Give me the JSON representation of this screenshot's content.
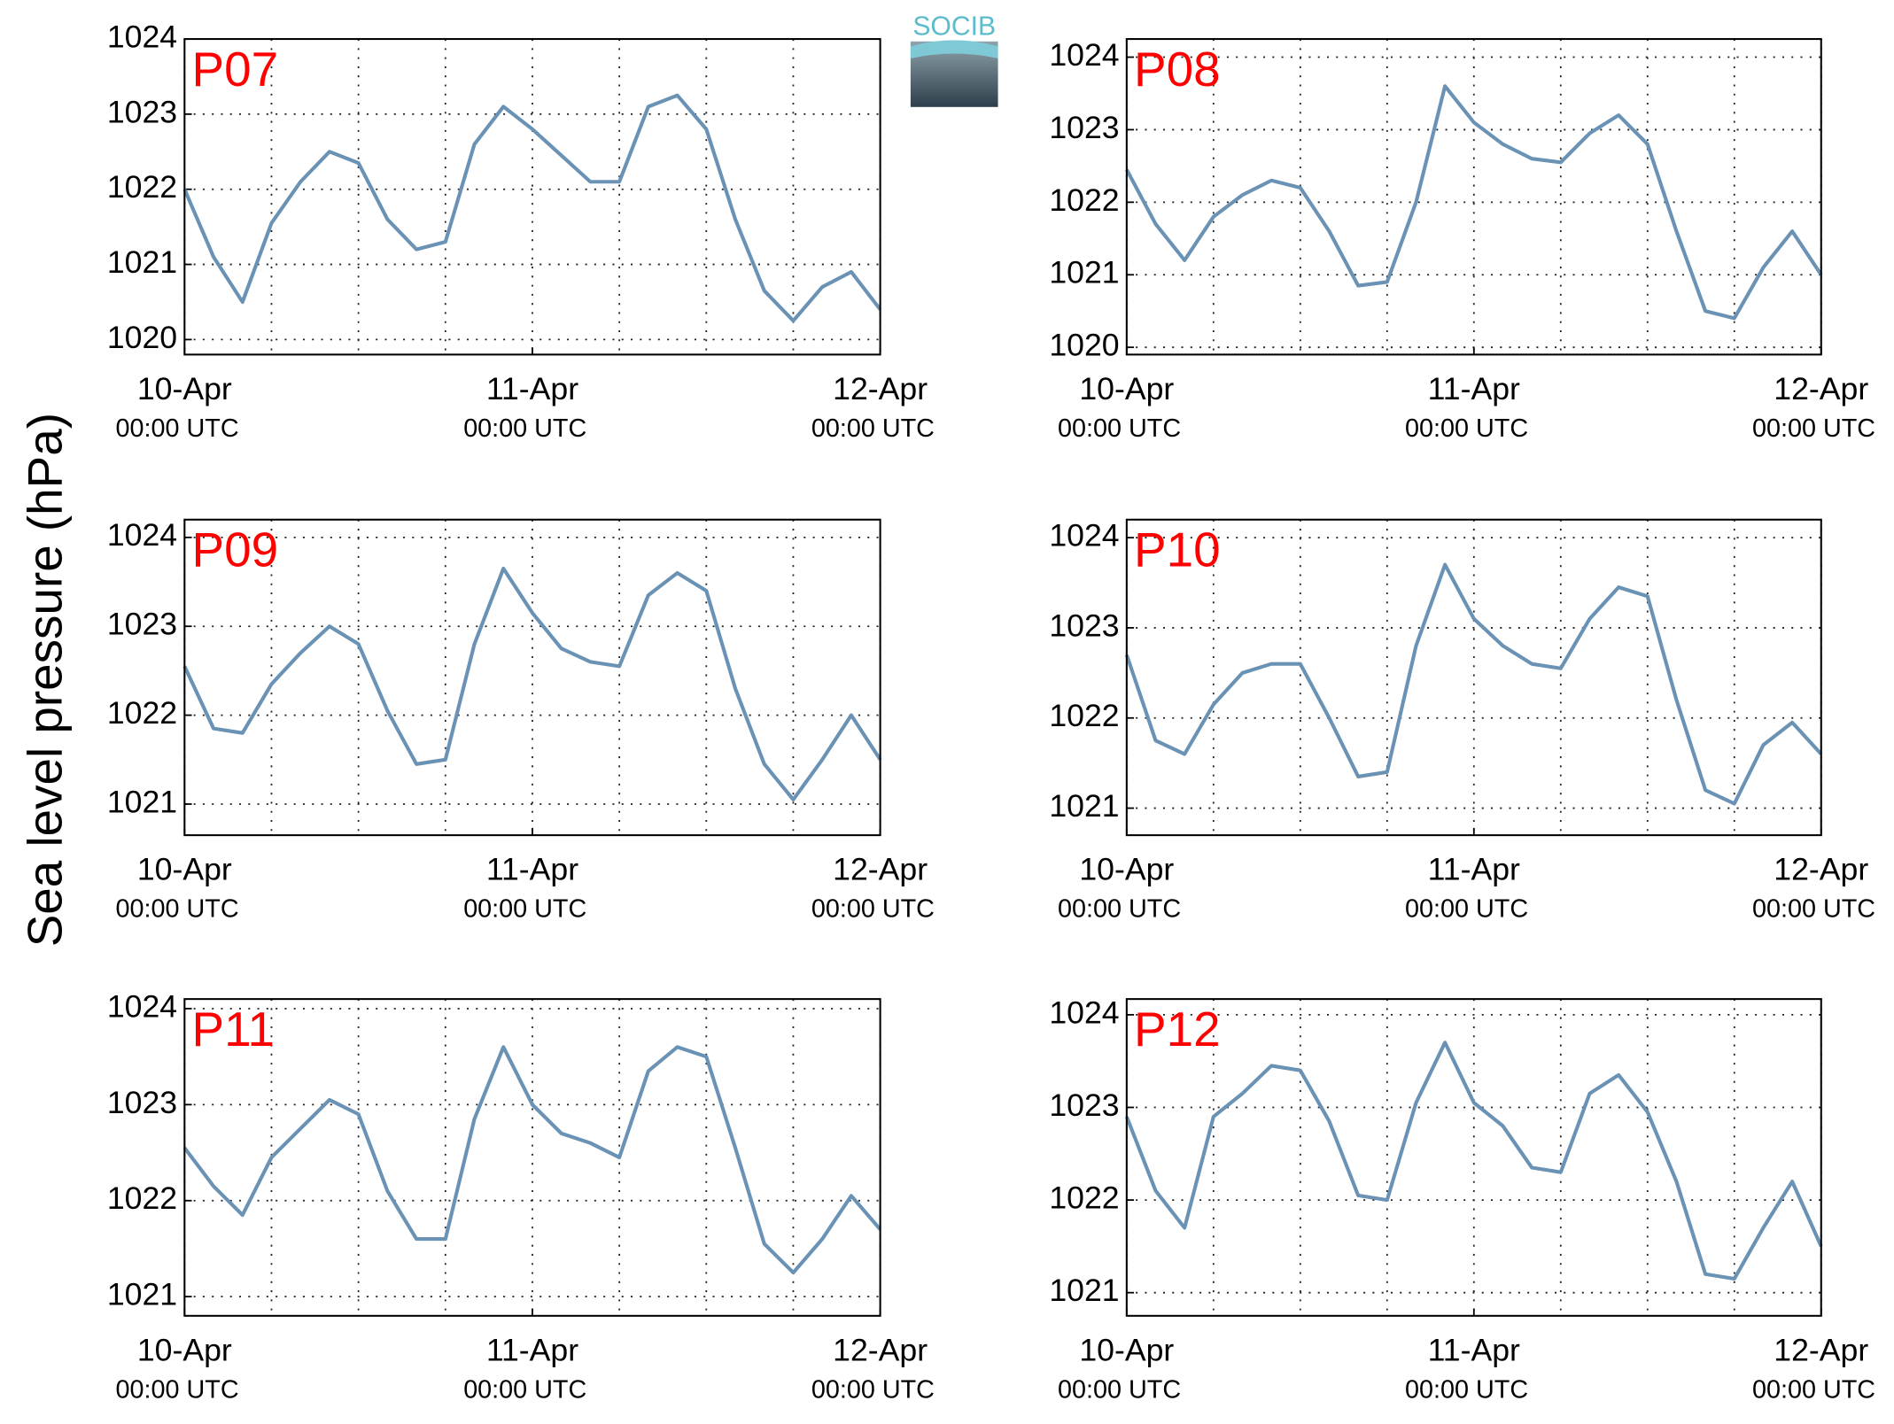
{
  "y_label": "Sea level pressure (hPa)",
  "logo": "SOCIB",
  "chart_data": [
    {
      "type": "line",
      "title": "P07",
      "x": [
        0,
        2,
        4,
        6,
        8,
        10,
        12,
        14,
        16,
        18,
        20,
        22,
        24,
        26,
        28,
        30,
        32,
        34,
        36,
        38,
        40,
        42,
        44,
        46,
        48
      ],
      "series": [
        {
          "color": "#6a92b4",
          "values": [
            1022.0,
            1021.1,
            1020.5,
            1021.55,
            1022.1,
            1022.5,
            1022.35,
            1021.6,
            1021.2,
            1021.3,
            1022.6,
            1023.1,
            1022.8,
            1022.45,
            1022.1,
            1022.1,
            1023.1,
            1023.25,
            1022.8,
            1021.6,
            1020.65,
            1020.25,
            1020.7,
            1020.9,
            1020.4
          ]
        }
      ],
      "xlim": [
        0,
        48
      ],
      "xticks": [
        {
          "value": 0,
          "label": "10-Apr",
          "sublabel": "00:00 UTC"
        },
        {
          "value": 24,
          "label": "11-Apr",
          "sublabel": "00:00 UTC"
        },
        {
          "value": 48,
          "label": "12-Apr",
          "sublabel": "00:00 UTC"
        }
      ],
      "xminor": [
        6,
        12,
        18,
        30,
        36,
        42
      ],
      "ylim": [
        1019.8,
        1024
      ],
      "yticks": [
        1020,
        1021,
        1022,
        1023,
        1024
      ],
      "grid": true
    },
    {
      "type": "line",
      "title": "P08",
      "x": [
        0,
        2,
        4,
        6,
        8,
        10,
        12,
        14,
        16,
        18,
        20,
        22,
        24,
        26,
        28,
        30,
        32,
        34,
        36,
        38,
        40,
        42,
        44,
        46,
        48
      ],
      "series": [
        {
          "color": "#6a92b4",
          "values": [
            1022.45,
            1021.7,
            1021.2,
            1021.8,
            1022.1,
            1022.3,
            1022.2,
            1021.6,
            1020.85,
            1020.9,
            1022.0,
            1023.6,
            1023.1,
            1022.8,
            1022.6,
            1022.55,
            1022.95,
            1023.2,
            1022.8,
            1021.6,
            1020.5,
            1020.4,
            1021.1,
            1021.6,
            1021.0
          ]
        }
      ],
      "xlim": [
        0,
        48
      ],
      "xticks": [
        {
          "value": 0,
          "label": "10-Apr",
          "sublabel": "00:00 UTC"
        },
        {
          "value": 24,
          "label": "11-Apr",
          "sublabel": "00:00 UTC"
        },
        {
          "value": 48,
          "label": "12-Apr",
          "sublabel": "00:00 UTC"
        }
      ],
      "xminor": [
        6,
        12,
        18,
        30,
        36,
        42
      ],
      "ylim": [
        1019.9,
        1024.25
      ],
      "yticks": [
        1020,
        1021,
        1022,
        1023,
        1024
      ],
      "grid": true
    },
    {
      "type": "line",
      "title": "P09",
      "x": [
        0,
        2,
        4,
        6,
        8,
        10,
        12,
        14,
        16,
        18,
        20,
        22,
        24,
        26,
        28,
        30,
        32,
        34,
        36,
        38,
        40,
        42,
        44,
        46,
        48
      ],
      "series": [
        {
          "color": "#6a92b4",
          "values": [
            1022.55,
            1021.85,
            1021.8,
            1022.35,
            1022.7,
            1023.0,
            1022.8,
            1022.05,
            1021.45,
            1021.5,
            1022.8,
            1023.65,
            1023.15,
            1022.75,
            1022.6,
            1022.55,
            1023.35,
            1023.6,
            1023.4,
            1022.3,
            1021.45,
            1021.05,
            1021.5,
            1022.0,
            1021.5
          ]
        }
      ],
      "xlim": [
        0,
        48
      ],
      "xticks": [
        {
          "value": 0,
          "label": "10-Apr",
          "sublabel": "00:00 UTC"
        },
        {
          "value": 24,
          "label": "11-Apr",
          "sublabel": "00:00 UTC"
        },
        {
          "value": 48,
          "label": "12-Apr",
          "sublabel": "00:00 UTC"
        }
      ],
      "xminor": [
        6,
        12,
        18,
        30,
        36,
        42
      ],
      "ylim": [
        1020.65,
        1024.2
      ],
      "yticks": [
        1021,
        1022,
        1023,
        1024
      ],
      "grid": true
    },
    {
      "type": "line",
      "title": "P10",
      "x": [
        0,
        2,
        4,
        6,
        8,
        10,
        12,
        14,
        16,
        18,
        20,
        22,
        24,
        26,
        28,
        30,
        32,
        34,
        36,
        38,
        40,
        42,
        44,
        46,
        48
      ],
      "series": [
        {
          "color": "#6a92b4",
          "values": [
            1022.7,
            1021.75,
            1021.6,
            1022.15,
            1022.5,
            1022.6,
            1022.6,
            1022.0,
            1021.35,
            1021.4,
            1022.8,
            1023.7,
            1023.1,
            1022.8,
            1022.6,
            1022.55,
            1023.1,
            1023.45,
            1023.35,
            1022.2,
            1021.2,
            1021.05,
            1021.7,
            1021.95,
            1021.6
          ]
        }
      ],
      "xlim": [
        0,
        48
      ],
      "xticks": [
        {
          "value": 0,
          "label": "10-Apr",
          "sublabel": "00:00 UTC"
        },
        {
          "value": 24,
          "label": "11-Apr",
          "sublabel": "00:00 UTC"
        },
        {
          "value": 48,
          "label": "12-Apr",
          "sublabel": "00:00 UTC"
        }
      ],
      "xminor": [
        6,
        12,
        18,
        30,
        36,
        42
      ],
      "ylim": [
        1020.7,
        1024.2
      ],
      "yticks": [
        1021,
        1022,
        1023,
        1024
      ],
      "grid": true
    },
    {
      "type": "line",
      "title": "P11",
      "x": [
        0,
        2,
        4,
        6,
        8,
        10,
        12,
        14,
        16,
        18,
        20,
        22,
        24,
        26,
        28,
        30,
        32,
        34,
        36,
        38,
        40,
        42,
        44,
        46,
        48
      ],
      "series": [
        {
          "color": "#6a92b4",
          "values": [
            1022.55,
            1022.15,
            1021.85,
            1022.45,
            1022.75,
            1023.05,
            1022.9,
            1022.1,
            1021.6,
            1021.6,
            1022.85,
            1023.6,
            1023.0,
            1022.7,
            1022.6,
            1022.45,
            1023.35,
            1023.6,
            1023.5,
            1022.55,
            1021.55,
            1021.25,
            1021.6,
            1022.05,
            1021.7
          ]
        }
      ],
      "xlim": [
        0,
        48
      ],
      "xticks": [
        {
          "value": 0,
          "label": "10-Apr",
          "sublabel": "00:00 UTC"
        },
        {
          "value": 24,
          "label": "11-Apr",
          "sublabel": "00:00 UTC"
        },
        {
          "value": 48,
          "label": "12-Apr",
          "sublabel": "00:00 UTC"
        }
      ],
      "xminor": [
        6,
        12,
        18,
        30,
        36,
        42
      ],
      "ylim": [
        1020.8,
        1024.1
      ],
      "yticks": [
        1021,
        1022,
        1023,
        1024
      ],
      "grid": true
    },
    {
      "type": "line",
      "title": "P12",
      "x": [
        0,
        2,
        4,
        6,
        8,
        10,
        12,
        14,
        16,
        18,
        20,
        22,
        24,
        26,
        28,
        30,
        32,
        34,
        36,
        38,
        40,
        42,
        44,
        46,
        48
      ],
      "series": [
        {
          "color": "#6a92b4",
          "values": [
            1022.9,
            1022.1,
            1021.7,
            1022.9,
            1023.15,
            1023.45,
            1023.4,
            1022.85,
            1022.05,
            1022.0,
            1023.05,
            1023.7,
            1023.05,
            1022.8,
            1022.35,
            1022.3,
            1023.15,
            1023.35,
            1022.95,
            1022.2,
            1021.2,
            1021.15,
            1021.7,
            1022.2,
            1021.5
          ]
        }
      ],
      "xlim": [
        0,
        48
      ],
      "xticks": [
        {
          "value": 0,
          "label": "10-Apr",
          "sublabel": "00:00 UTC"
        },
        {
          "value": 24,
          "label": "11-Apr",
          "sublabel": "00:00 UTC"
        },
        {
          "value": 48,
          "label": "12-Apr",
          "sublabel": "00:00 UTC"
        }
      ],
      "xminor": [
        6,
        12,
        18,
        30,
        36,
        42
      ],
      "ylim": [
        1020.75,
        1024.17
      ],
      "yticks": [
        1021,
        1022,
        1023,
        1024
      ],
      "grid": true
    }
  ]
}
